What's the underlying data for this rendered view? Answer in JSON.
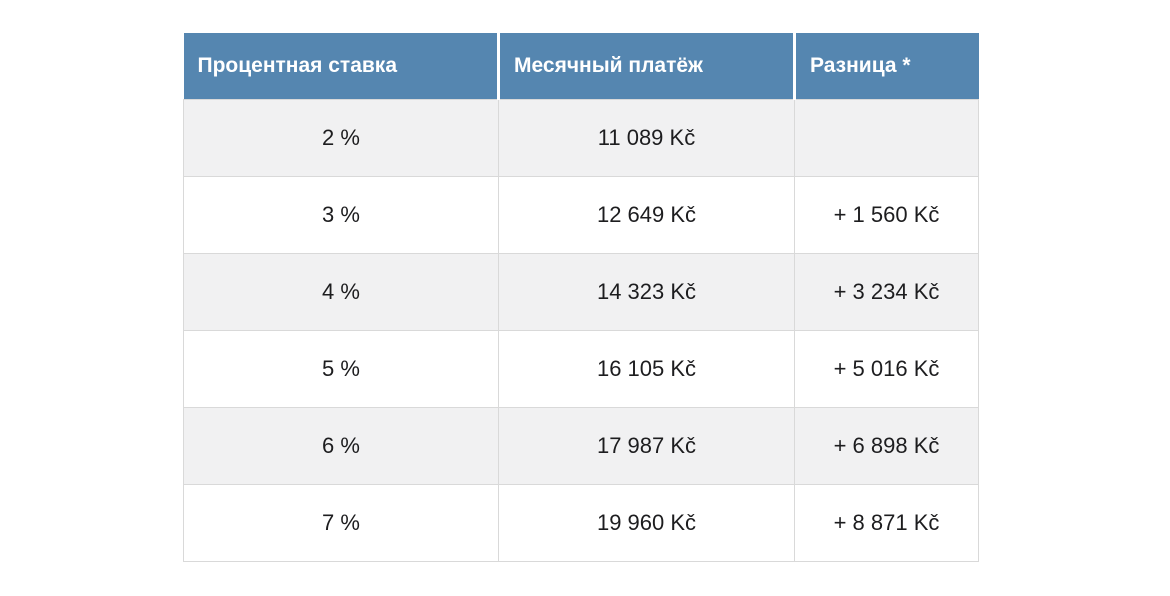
{
  "colors": {
    "header_bg": "#5586b0",
    "header_text": "#ffffff",
    "row_stripe": "#f1f1f2",
    "border_color": "#d9d9d9",
    "cell_text": "#1d1d1f"
  },
  "table": {
    "headers": [
      "Процентная ставка",
      "Месячный платёж",
      "Разница *"
    ],
    "rows": [
      [
        "2 %",
        "11 089 Kč",
        ""
      ],
      [
        "3 %",
        "12 649 Kč",
        "+ 1 560 Kč"
      ],
      [
        "4 %",
        "14 323 Kč",
        "+ 3 234 Kč"
      ],
      [
        "5 %",
        "16 105 Kč",
        "+ 5 016 Kč"
      ],
      [
        "6 %",
        "17 987 Kč",
        "+ 6 898 Kč"
      ],
      [
        "7 %",
        "19 960 Kč",
        "+ 8 871 Kč"
      ]
    ]
  },
  "chart_data": {
    "type": "table",
    "title": "",
    "columns": [
      "Процентная ставка",
      "Месячный платёж",
      "Разница *"
    ],
    "rows": [
      {
        "rate_percent": 2,
        "monthly_payment_kc": 11089,
        "difference_kc": null
      },
      {
        "rate_percent": 3,
        "monthly_payment_kc": 12649,
        "difference_kc": 1560
      },
      {
        "rate_percent": 4,
        "monthly_payment_kc": 14323,
        "difference_kc": 3234
      },
      {
        "rate_percent": 5,
        "monthly_payment_kc": 16105,
        "difference_kc": 5016
      },
      {
        "rate_percent": 6,
        "monthly_payment_kc": 17987,
        "difference_kc": 6898
      },
      {
        "rate_percent": 7,
        "monthly_payment_kc": 19960,
        "difference_kc": 8871
      }
    ]
  }
}
